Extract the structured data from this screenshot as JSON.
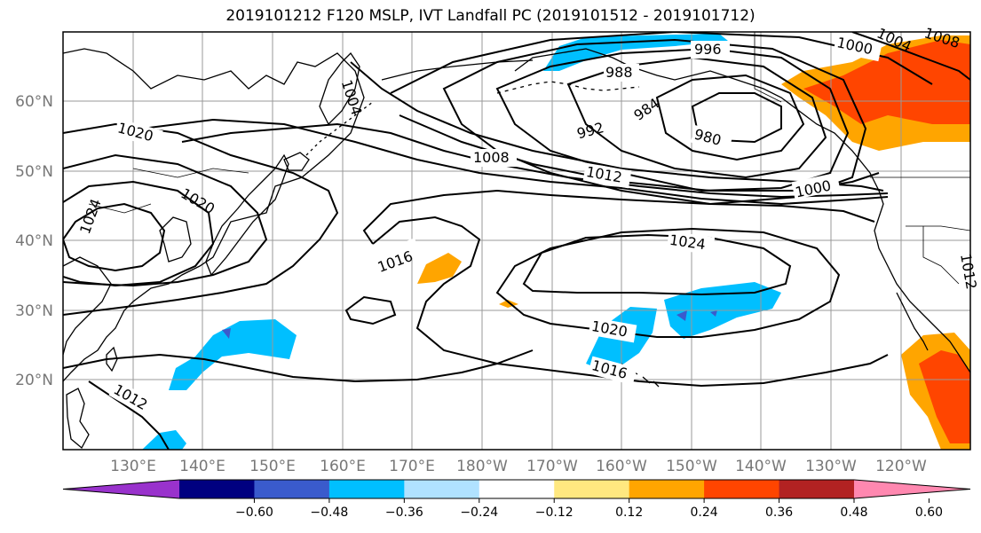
{
  "title": "2019101212 F120 MSLP, IVT Landfall PC (2019101512 - 2019101712)",
  "map": {
    "lat_labels": [
      "60°N",
      "50°N",
      "40°N",
      "30°N",
      "20°N"
    ],
    "lon_labels": [
      "130°E",
      "140°E",
      "150°E",
      "160°E",
      "170°E",
      "180°W",
      "170°W",
      "160°W",
      "150°W",
      "140°W",
      "130°W",
      "120°W"
    ],
    "mslp_contour_labels": [
      "996",
      "1000",
      "1004",
      "1008",
      "988",
      "984",
      "992",
      "980",
      "1004",
      "1020",
      "1008",
      "1012",
      "1000",
      "1024",
      "1020",
      "1016",
      "1024",
      "1020",
      "1016",
      "1012",
      "1012"
    ],
    "ivt_colors": {
      "neg_048": "#000080",
      "neg_036": "#3a5bcc",
      "neg_024": "#00bfff",
      "neg_012": "#b0e2ff",
      "pos_012": "#ffe880",
      "pos_024": "#ffa500",
      "pos_036": "#ff4500",
      "pos_048": "#b22222"
    }
  },
  "colorbar": {
    "ticks": [
      "−0.60",
      "−0.48",
      "−0.36",
      "−0.24",
      "−0.12",
      "0.12",
      "0.24",
      "0.36",
      "0.48",
      "0.60"
    ],
    "colors": [
      "#9932cc",
      "#000080",
      "#3a5bcc",
      "#00bfff",
      "#b0e2ff",
      "#ffffff",
      "#ffe880",
      "#ffa500",
      "#ff4500",
      "#b22222",
      "#ff88b0"
    ]
  }
}
